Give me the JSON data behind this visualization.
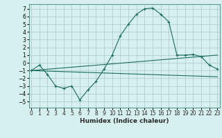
{
  "title": "",
  "xlabel": "Humidex (Indice chaleur)",
  "bg_color": "#d6f0ef",
  "grid_color": "#b0cece",
  "line_color": "#1a6b5e",
  "x_ticks": [
    0,
    1,
    2,
    3,
    4,
    5,
    6,
    7,
    8,
    9,
    10,
    11,
    12,
    13,
    14,
    15,
    16,
    17,
    18,
    19,
    20,
    21,
    22,
    23
  ],
  "y_ticks": [
    -5,
    -4,
    -3,
    -2,
    -1,
    0,
    1,
    2,
    3,
    4,
    5,
    6,
    7
  ],
  "ylim": [
    -5.8,
    7.6
  ],
  "xlim": [
    -0.3,
    23.3
  ],
  "curve_main": {
    "x": [
      0,
      1,
      2,
      3,
      4,
      5,
      6,
      7,
      8,
      9,
      10,
      11,
      12,
      13,
      14,
      15,
      16,
      17,
      18,
      19,
      20,
      21,
      22,
      23
    ],
    "y": [
      -1.0,
      -0.3,
      -1.5,
      -3.0,
      -3.3,
      -3.0,
      -4.8,
      -3.5,
      -2.4,
      -0.8,
      1.0,
      3.5,
      5.0,
      6.3,
      7.0,
      7.1,
      6.3,
      5.3,
      1.0,
      1.0,
      1.1,
      0.8,
      -0.3,
      -0.8
    ]
  },
  "curve_upper": {
    "x": [
      0,
      23
    ],
    "y": [
      -1.0,
      1.0
    ]
  },
  "curve_lower": {
    "x": [
      0,
      23
    ],
    "y": [
      -1.0,
      -1.8
    ]
  },
  "xlabel_fontsize": 6.5,
  "tick_fontsize": 5.5,
  "lw": 0.8,
  "marker_size": 2.5
}
